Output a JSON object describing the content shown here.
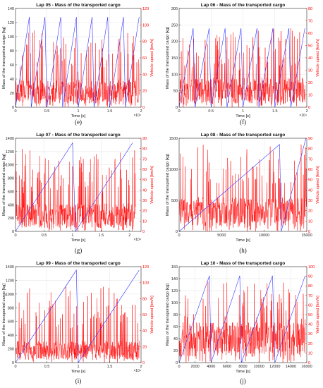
{
  "colors": {
    "mass": "#3333ff",
    "speed": "#ff0000",
    "grid": "#e3e3e3"
  },
  "chart_data": [
    {
      "type": "line",
      "caption": "(e)",
      "title": "Lap 05 - Mass of the transported cargo",
      "xlabel": "Time [s]",
      "ylabel_left": "Mass of the transported cargo [kg]",
      "ylabel_right": "Vehicle speed [km/h]",
      "xlim": [
        0,
        2
      ],
      "x_exponent": "×10⁴",
      "xticks": [
        0,
        0.5,
        1,
        1.5,
        2
      ],
      "ylim_left": [
        0,
        140
      ],
      "yticks_left": [
        0,
        20,
        40,
        60,
        80,
        100,
        120,
        140
      ],
      "ylim_right": [
        0,
        120
      ],
      "yticks_right": [
        0,
        20,
        40,
        60,
        80,
        100,
        120
      ],
      "grid": true,
      "mass_series": {
        "x": [
          0,
          0.22,
          0.25,
          0.47,
          0.5,
          0.72,
          0.75,
          0.97,
          1.0,
          1.22,
          1.25,
          1.47,
          1.5,
          1.72,
          1.75,
          1.97
        ],
        "y": [
          0,
          128,
          0,
          128,
          0,
          128,
          0,
          128,
          0,
          128,
          0,
          128,
          0,
          128,
          0,
          128
        ]
      },
      "speed_series": {
        "x_end": 1.97,
        "level": 22,
        "peak": 95,
        "seed": 5
      }
    },
    {
      "type": "line",
      "caption": "(f)",
      "title": "Lap 06 - Mass of the transported cargo",
      "xlabel": "Time [s]",
      "ylabel_left": "Mass of the transported cargo [kg]",
      "ylabel_right": "Vehicle speed [km/h]",
      "xlim": [
        0,
        2
      ],
      "x_exponent": "×10⁴",
      "xticks": [
        0,
        0.5,
        1,
        1.5,
        2
      ],
      "ylim_left": [
        0,
        300
      ],
      "yticks_left": [
        0,
        50,
        100,
        150,
        200,
        250,
        300
      ],
      "ylim_right": [
        0,
        80
      ],
      "yticks_right": [
        0,
        10,
        20,
        30,
        40,
        50,
        60,
        70,
        80
      ],
      "grid": true,
      "mass_series": {
        "x": [
          0,
          0.22,
          0.25,
          0.47,
          0.5,
          0.72,
          0.75,
          0.97,
          1.0,
          1.22,
          1.25,
          1.47,
          1.5,
          1.72,
          1.75,
          1.97
        ],
        "y": [
          0,
          240,
          0,
          240,
          0,
          240,
          0,
          240,
          0,
          240,
          0,
          240,
          0,
          240,
          0,
          240
        ]
      },
      "speed_series": {
        "x_end": 1.98,
        "level": 16,
        "peak": 65,
        "seed": 6
      }
    },
    {
      "type": "line",
      "caption": "(g)",
      "title": "Lap 07 - Mass of the transported cargo",
      "xlabel": "Time [s]",
      "ylabel_left": "Mass of the transported cargo [kg]",
      "ylabel_right": "Vehicle speed [km/h]",
      "xlim": [
        0,
        2.2
      ],
      "x_exponent": "×10⁴",
      "xticks": [
        0,
        0.5,
        1,
        1.5,
        2
      ],
      "ylim_left": [
        0,
        1400
      ],
      "yticks_left": [
        0,
        200,
        400,
        600,
        800,
        1000,
        1200,
        1400
      ],
      "ylim_right": [
        0,
        90
      ],
      "yticks_right": [
        0,
        10,
        20,
        30,
        40,
        50,
        60,
        70,
        80,
        90
      ],
      "grid": true,
      "mass_series": {
        "x": [
          0,
          1.0,
          1.05,
          2.05
        ],
        "y": [
          0,
          1330,
          0,
          1330
        ]
      },
      "speed_series": {
        "x_end": 2.1,
        "level": 18,
        "peak": 80,
        "seed": 7
      }
    },
    {
      "type": "line",
      "caption": "(h)",
      "title": "Lap 08 - Mass of the transported cargo",
      "xlabel": "Time [s]",
      "ylabel_left": "Mass of the transported cargo [kg]",
      "ylabel_right": "Vehicle speed [km/h]",
      "xlim": [
        0,
        15000
      ],
      "x_exponent": "",
      "xticks": [
        0,
        5000,
        10000,
        15000
      ],
      "ylim_left": [
        0,
        1500
      ],
      "yticks_left": [
        0,
        500,
        1000,
        1500
      ],
      "ylim_right": [
        0,
        90
      ],
      "yticks_right": [
        0,
        10,
        20,
        30,
        40,
        50,
        60,
        70,
        80,
        90
      ],
      "grid": true,
      "mass_series": {
        "x": [
          0,
          11800,
          12000,
          14900
        ],
        "y": [
          0,
          1400,
          0,
          1500
        ]
      },
      "speed_series": {
        "x_end": 15000,
        "level": 22,
        "peak": 88,
        "seed": 8
      }
    },
    {
      "type": "line",
      "caption": "(i)",
      "title": "Lap 09 - Mass of the transported cargo",
      "xlabel": "Time [s]",
      "ylabel_left": "Mass of the transported cargo [kg]",
      "ylabel_right": "Vehicle speed [km/h]",
      "xlim": [
        0,
        2
      ],
      "x_exponent": "×10⁴",
      "xticks": [
        0,
        0.5,
        1,
        1.5,
        2
      ],
      "ylim_left": [
        0,
        1400
      ],
      "yticks_left": [
        0,
        200,
        400,
        600,
        800,
        1000,
        1200,
        1400
      ],
      "ylim_right": [
        0,
        120
      ],
      "yticks_right": [
        0,
        20,
        40,
        60,
        80,
        100,
        120
      ],
      "grid": true,
      "mass_series": {
        "x": [
          0,
          0.97,
          1.0,
          1.97
        ],
        "y": [
          0,
          1350,
          0,
          1350
        ]
      },
      "speed_series": {
        "x_end": 1.97,
        "level": 18,
        "peak": 95,
        "seed": 9
      }
    },
    {
      "type": "line",
      "caption": "(j)",
      "title": "Lap 10 - Mass of the transported cargo",
      "xlabel": "Time [s]",
      "ylabel_left": "Mass of the transported cargo [kg]",
      "ylabel_right": "Vehicle speed [km/h]",
      "xlim": [
        0,
        16000
      ],
      "x_exponent": "",
      "xticks": [
        0,
        2000,
        4000,
        6000,
        8000,
        10000,
        12000,
        14000,
        16000
      ],
      "ylim_left": [
        0,
        160
      ],
      "yticks_left": [
        0,
        20,
        40,
        60,
        80,
        100,
        120,
        140,
        160
      ],
      "ylim_right": [
        0,
        100
      ],
      "yticks_right": [
        0,
        10,
        20,
        30,
        40,
        50,
        60,
        70,
        80,
        90,
        100
      ],
      "grid": true,
      "mass_series": {
        "x": [
          0,
          3800,
          4000,
          7600,
          7800,
          11700,
          12000,
          15800
        ],
        "y": [
          0,
          145,
          0,
          145,
          0,
          145,
          0,
          145
        ]
      },
      "speed_series": {
        "x_end": 15800,
        "level": 28,
        "peak": 85,
        "seed": 10
      }
    }
  ]
}
